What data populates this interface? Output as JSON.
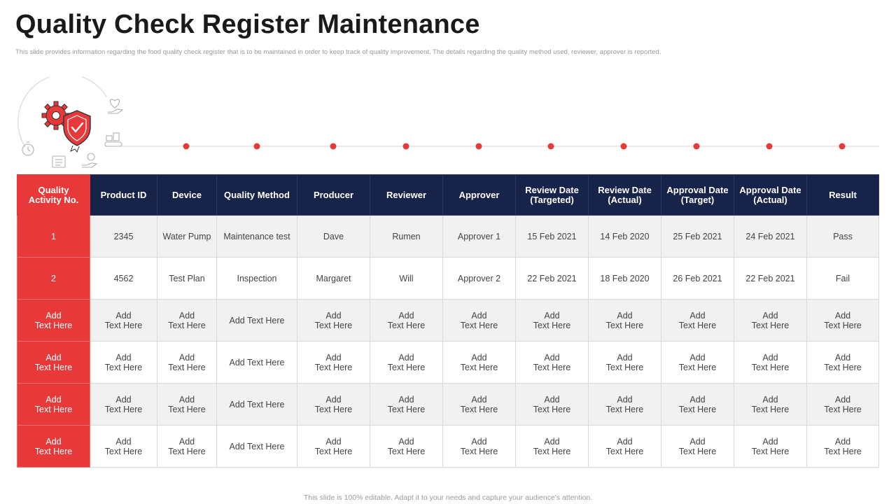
{
  "page": {
    "title": "Quality Check Register Maintenance",
    "subtitle": "This slide provides information regarding the food quality check register that is to be maintained  in order to keep track of quality improvement. The details regarding the quality method used, reviewer, approver is reported.",
    "footer": "This slide is 100% editable.  Adapt it to your needs and capture your audience's attention."
  },
  "graphic": {
    "main_icons": [
      "gear-icon",
      "shield-check-icon"
    ],
    "orbit_icons": [
      "hand-heart-icon",
      "stopwatch-icon",
      "conveyor-icon",
      "document-icon",
      "hand-coin-icon"
    ],
    "timeline_dot_count": 10
  },
  "colors": {
    "accent": "#e8393a",
    "header_bg": "#18234a",
    "row_alt": "#f1f1f1",
    "title": "#1a1a1a",
    "muted": "#9a9a9a"
  },
  "table": {
    "headers": [
      "Quality\nActivity No.",
      "Product ID",
      "Device",
      "Quality Method",
      "Producer",
      "Reviewer",
      "Approver",
      "Review Date\n(Targeted)",
      "Review Date\n(Actual)",
      "Approval Date\n(Target)",
      "Approval Date\n(Actual)",
      "Result"
    ],
    "rows": [
      [
        "1",
        "2345",
        "Water Pump",
        "Maintenance test",
        "Dave",
        "Rumen",
        "Approver 1",
        "15 Feb 2021",
        "14 Feb 2020",
        "25 Feb 2021",
        "24 Feb 2021",
        "Pass"
      ],
      [
        "2",
        "4562",
        "Test Plan",
        "Inspection",
        "Margaret",
        "Will",
        "Approver 2",
        "22 Feb 2021",
        "18 Feb 2020",
        "26 Feb 2021",
        "22 Feb 2021",
        "Fail"
      ],
      [
        "Add\nText Here",
        "Add\nText Here",
        "Add\nText Here",
        "Add Text Here",
        "Add\nText Here",
        "Add\nText Here",
        "Add\nText Here",
        "Add\nText Here",
        "Add\nText Here",
        "Add\nText Here",
        "Add\nText Here",
        "Add\nText Here"
      ],
      [
        "Add\nText Here",
        "Add\nText Here",
        "Add\nText Here",
        "Add Text Here",
        "Add\nText Here",
        "Add\nText Here",
        "Add\nText Here",
        "Add\nText Here",
        "Add\nText Here",
        "Add\nText Here",
        "Add\nText Here",
        "Add\nText Here"
      ],
      [
        "Add\nText Here",
        "Add\nText Here",
        "Add\nText Here",
        "Add Text Here",
        "Add\nText Here",
        "Add\nText Here",
        "Add\nText Here",
        "Add\nText Here",
        "Add\nText Here",
        "Add\nText Here",
        "Add\nText Here",
        "Add\nText Here"
      ],
      [
        "Add\nText Here",
        "Add\nText Here",
        "Add\nText Here",
        "Add Text Here",
        "Add\nText Here",
        "Add\nText Here",
        "Add\nText Here",
        "Add\nText Here",
        "Add\nText Here",
        "Add\nText Here",
        "Add\nText Here",
        "Add\nText Here"
      ]
    ]
  }
}
